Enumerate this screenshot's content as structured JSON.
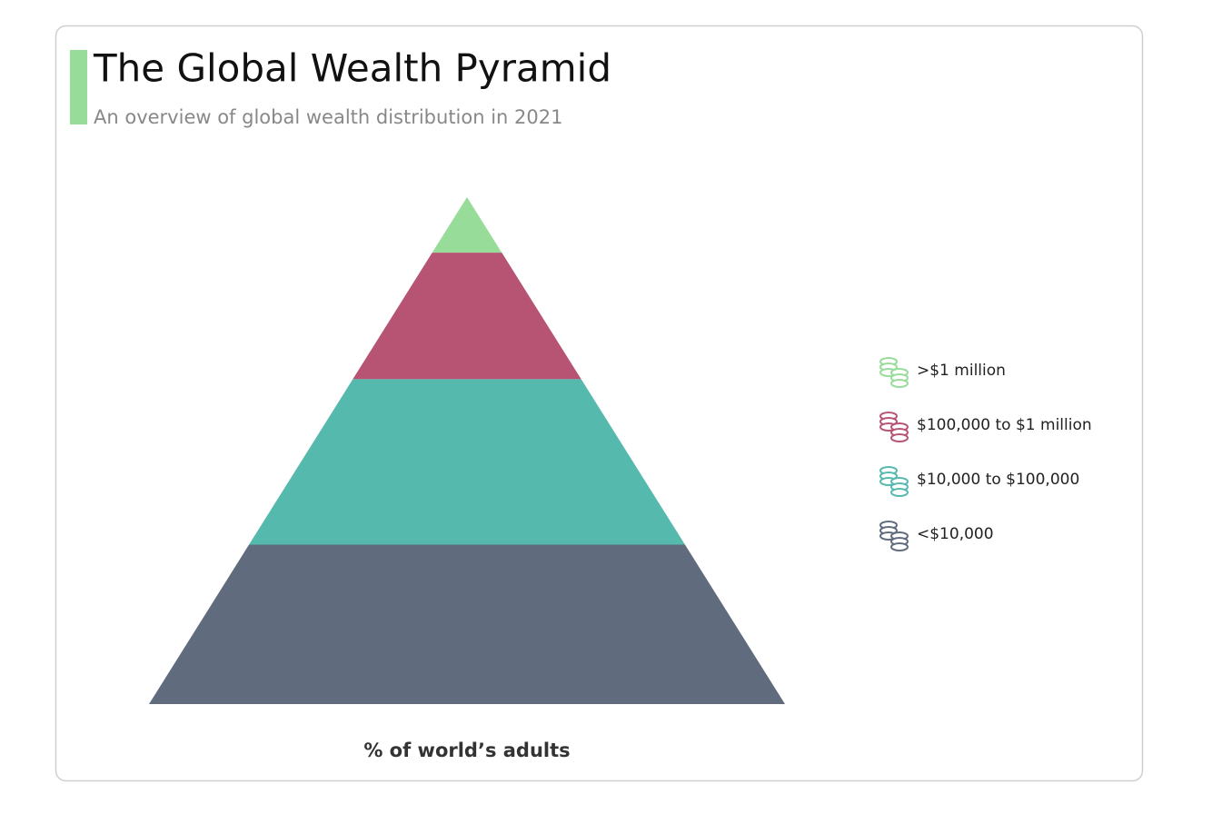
{
  "chart_data": {
    "type": "pyramid",
    "title": "The Global Wealth Pyramid",
    "subtitle": "An overview of global wealth distribution in 2021",
    "xlabel": "% of world’s adults",
    "categories": [
      ">$1 million",
      "$100,000 to $1 million",
      "$10,000 to $100,000",
      "<$10,000"
    ],
    "values": [
      1.2,
      11.7,
      34.1,
      53.0
    ],
    "colors": [
      "#98dc9a",
      "#b75473",
      "#56b9ae",
      "#606c7e"
    ],
    "accent_color": "#98dc9a"
  }
}
